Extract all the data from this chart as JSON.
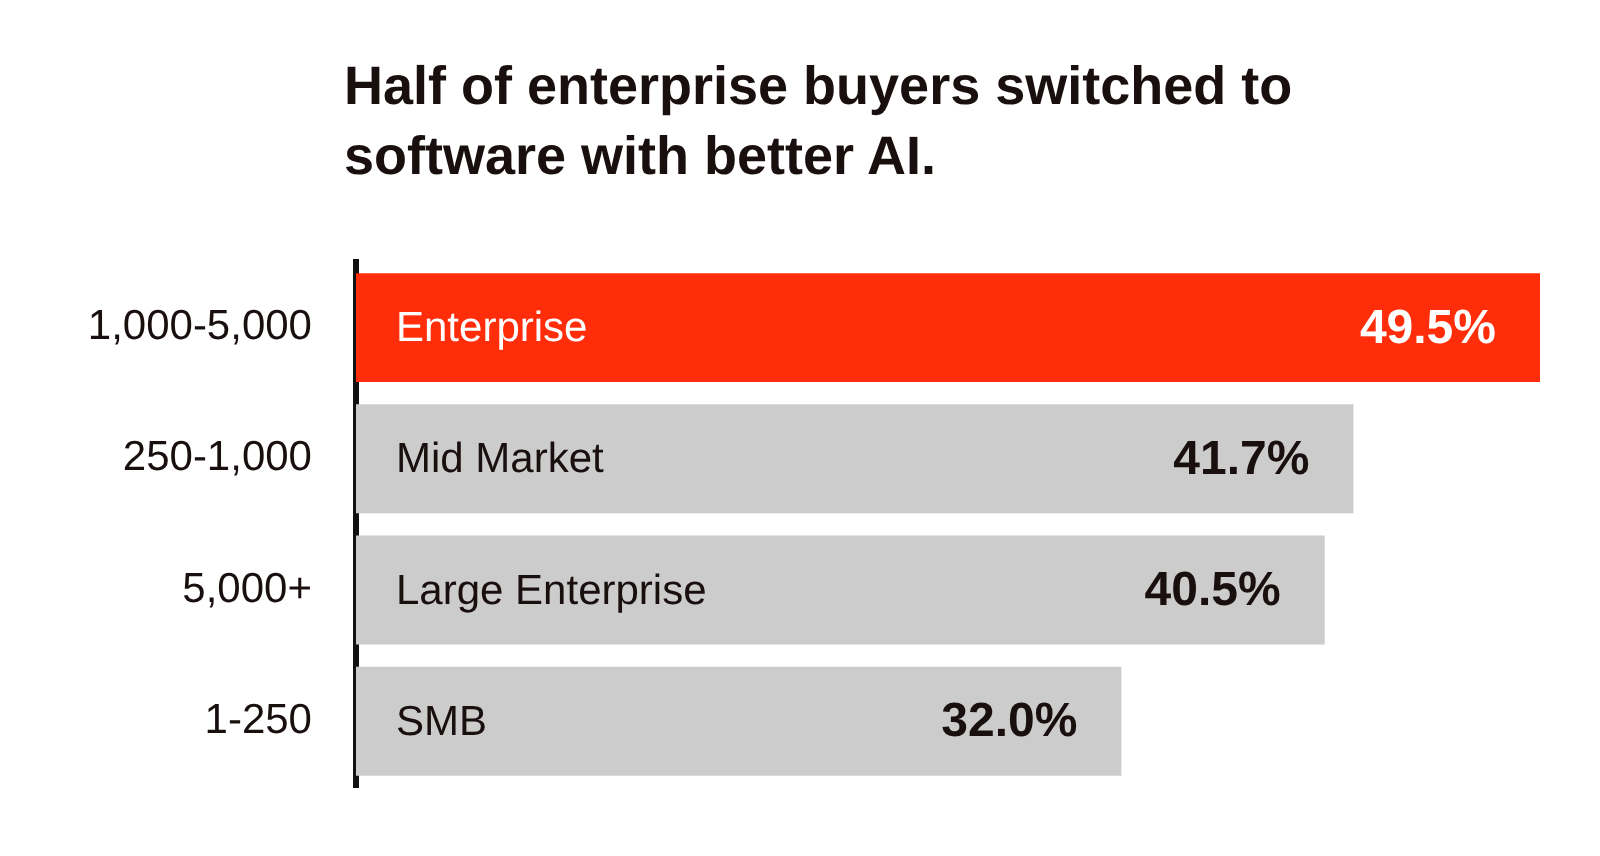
{
  "chart_data": {
    "type": "bar",
    "orientation": "horizontal",
    "title": "Half of enterprise buyers switched to software with better AI.",
    "categories": [
      "1,000-5,000",
      "250-1,000",
      "5,000+",
      "1-250"
    ],
    "values": [
      49.5,
      41.7,
      40.5,
      32.0
    ],
    "colors": [
      "#ff2d0a",
      "#cccccc",
      "#cccccc",
      "#cccccc"
    ],
    "value_labels": [
      "49.5%",
      "41.7%",
      "40.5%",
      "32.0%"
    ],
    "xlim": [
      0,
      49.5
    ],
    "tick_labels": "y",
    "annotations": [
      {
        "text": "Enterprise",
        "y": "1,000-5,000"
      },
      {
        "text": "Mid Market",
        "y": "250-1,000"
      },
      {
        "text": "Large Enterprise",
        "y": "5,000+"
      },
      {
        "text": "SMB",
        "y": "1-250"
      }
    ]
  }
}
